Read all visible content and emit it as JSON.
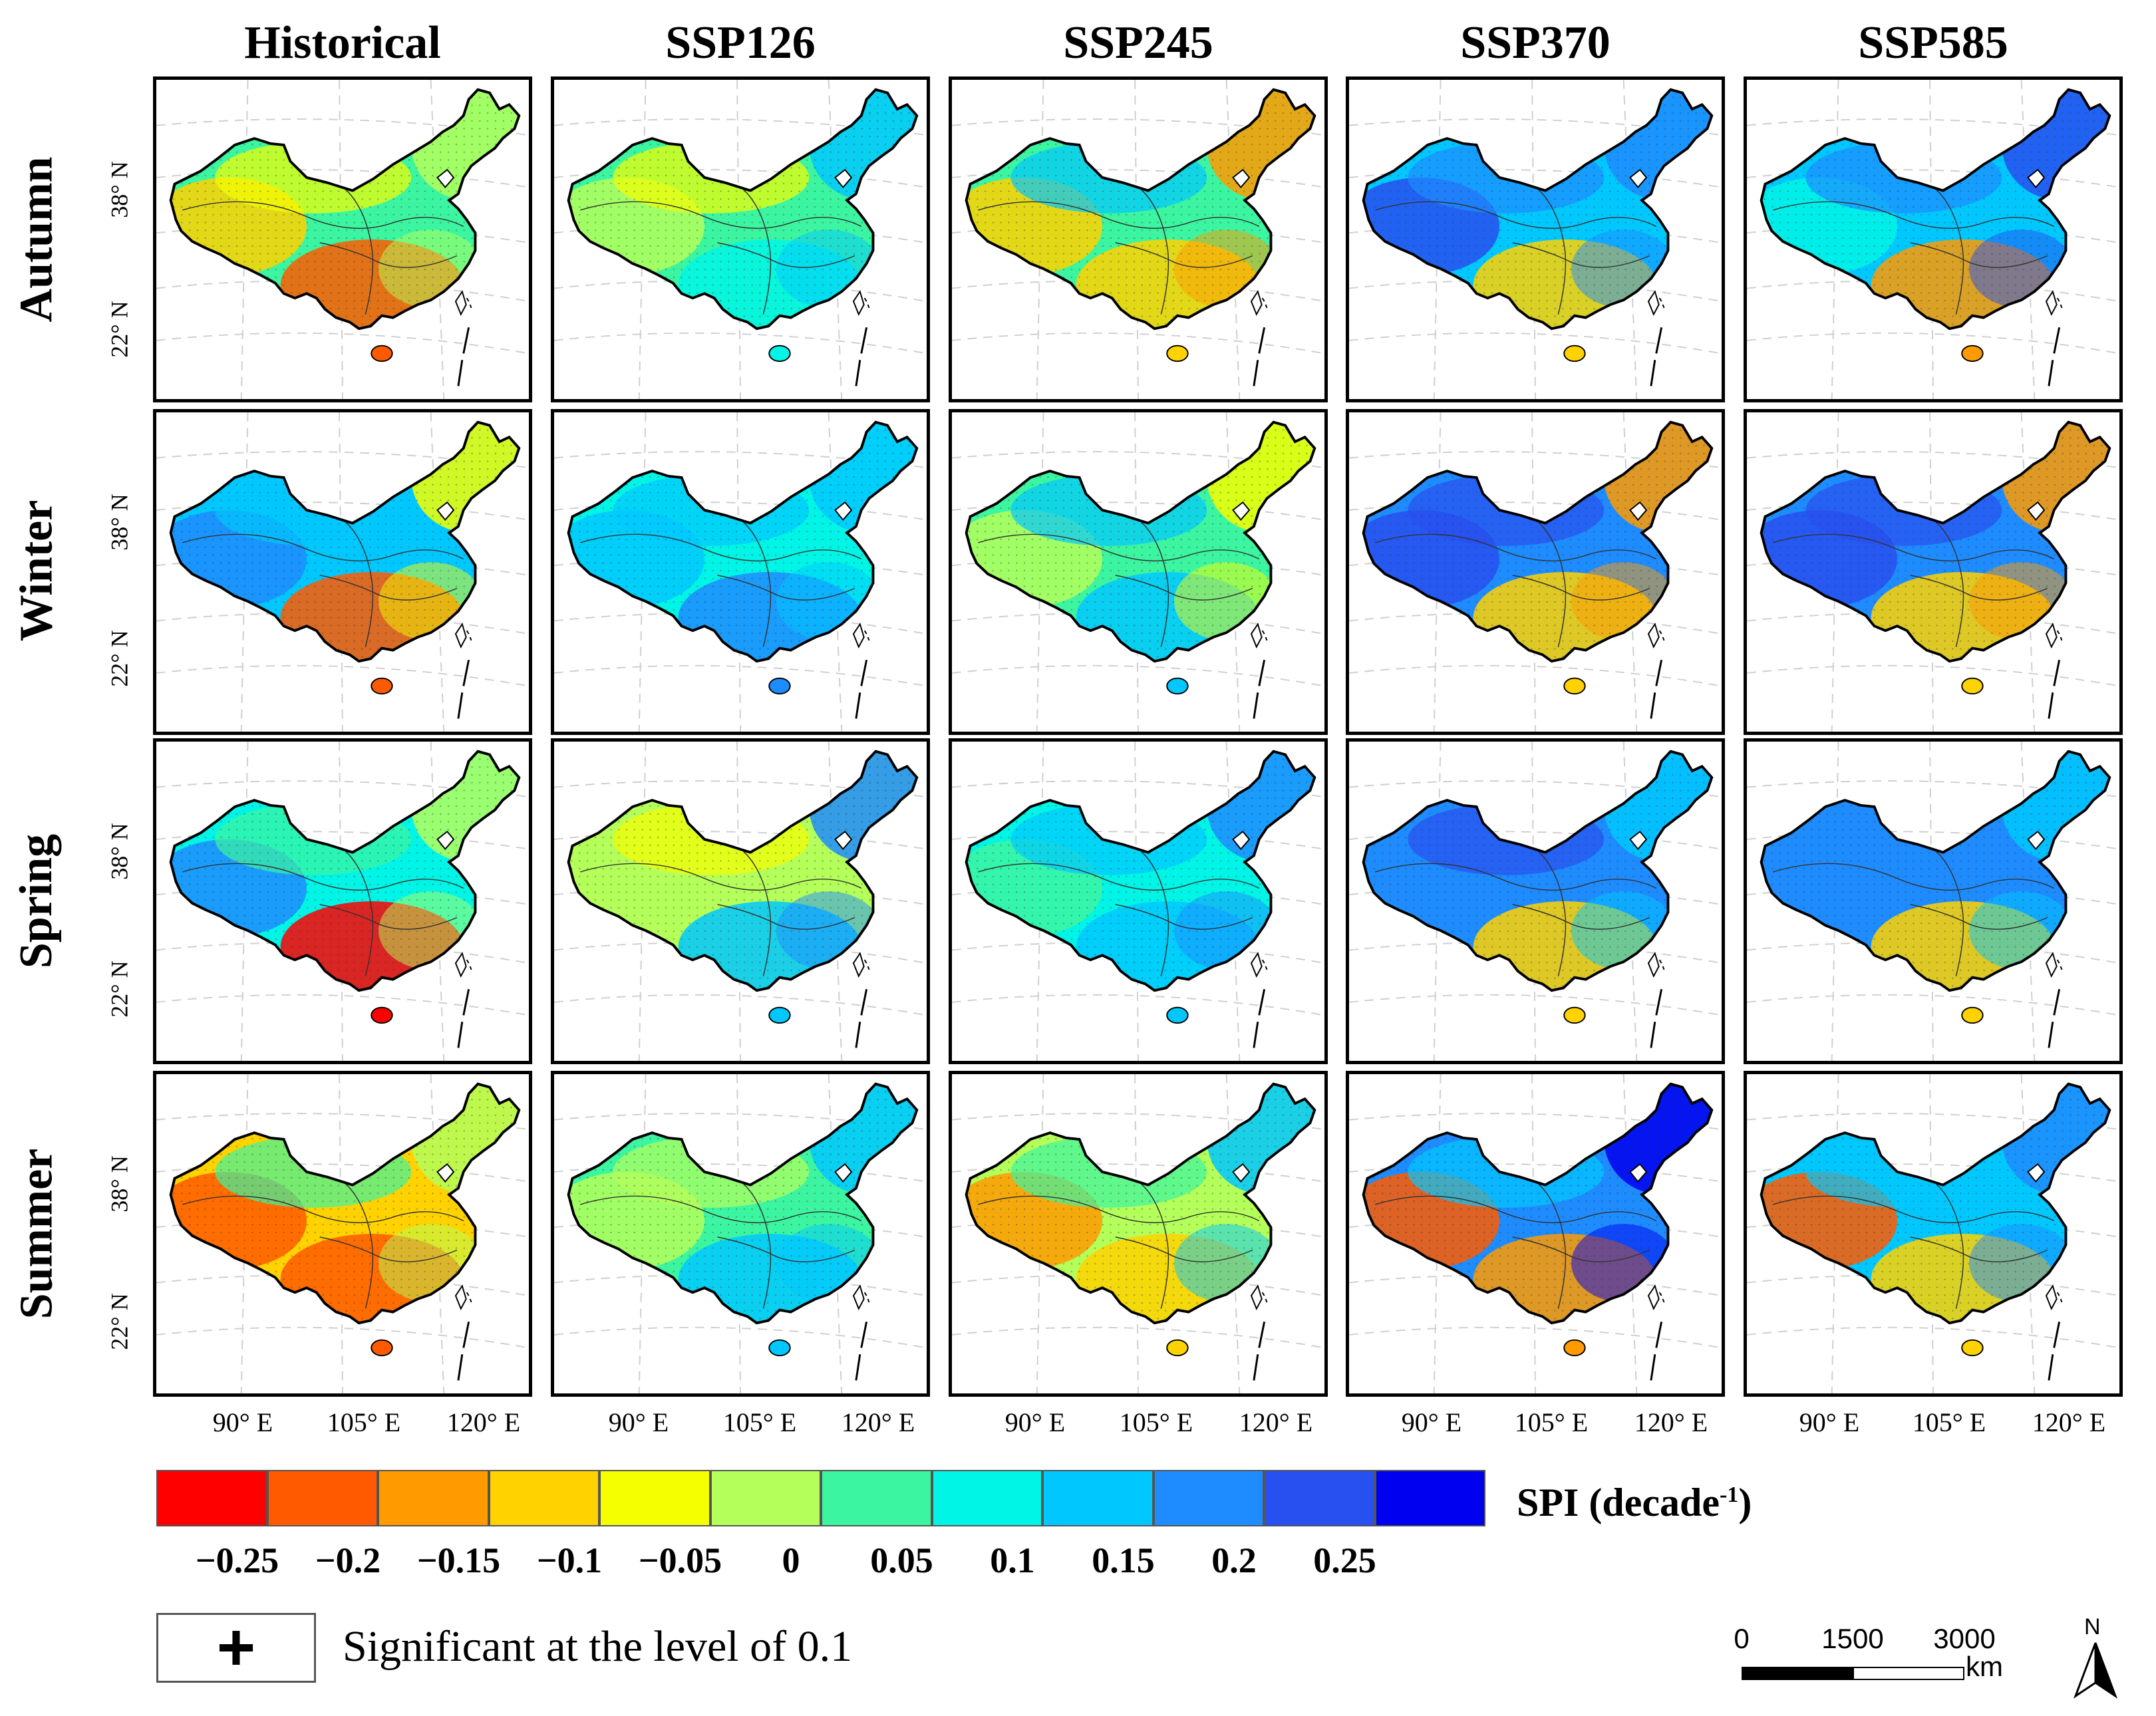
{
  "columns": [
    "Historical",
    "SSP126",
    "SSP245",
    "SSP370",
    "SSP585"
  ],
  "rows": [
    "Autumn",
    "Winter",
    "Spring",
    "Summer"
  ],
  "lat_labels": [
    "38° N",
    "22° N"
  ],
  "lon_labels": [
    "90° E",
    "105° E",
    "120° E"
  ],
  "colorbar": {
    "title": "SPI  (decade",
    "title_sup": "-1",
    "title_end": ")",
    "colors": [
      "#ff0000",
      "#ff5a00",
      "#ff9a00",
      "#ffd200",
      "#f5ff00",
      "#b4ff5a",
      "#3cf5a0",
      "#00f5e6",
      "#00c8ff",
      "#1e8cff",
      "#2850f0",
      "#0000f0"
    ],
    "ticks": [
      "−0.25",
      "−0.2",
      "−0.15",
      "−0.1",
      "−0.05",
      "0",
      "0.05",
      "0.1",
      "0.15",
      "0.2",
      "0.25"
    ]
  },
  "legend": {
    "symbol": "+",
    "text": "Significant at the level of 0.1"
  },
  "scalebar": {
    "labels": [
      "0",
      "1500",
      "3000"
    ],
    "unit": "km"
  },
  "north_arrow": "N",
  "map_data": {
    "Historical": {
      "Autumn": {
        "base": "#3cf5a0",
        "east": "#b4ff5a",
        "south": "#ff5a00",
        "north": "#f5ff00",
        "west": "#ffd200"
      },
      "Winter": {
        "base": "#00c8ff",
        "east": "#f5ff00",
        "south": "#ff5a00",
        "north": "#00c8ff",
        "west": "#1e8cff"
      },
      "Spring": {
        "base": "#00f5e6",
        "east": "#b4ff5a",
        "south": "#ff0000",
        "north": "#3cf5a0",
        "west": "#1e8cff"
      },
      "Summer": {
        "base": "#ffd200",
        "east": "#b4ff5a",
        "south": "#ff5a00",
        "north": "#3cf5a0",
        "west": "#ff5a00"
      }
    },
    "SSP126": {
      "Autumn": {
        "base": "#3cf5a0",
        "east": "#00c8ff",
        "south": "#00f5e6",
        "north": "#f5ff00",
        "west": "#b4ff5a"
      },
      "Winter": {
        "base": "#00f5e6",
        "east": "#00c8ff",
        "south": "#1e8cff",
        "north": "#00c8ff",
        "west": "#00c8ff"
      },
      "Spring": {
        "base": "#b4ff5a",
        "east": "#1e8cff",
        "south": "#00c8ff",
        "north": "#f5ff00",
        "west": "#b4ff5a"
      },
      "Summer": {
        "base": "#3cf5a0",
        "east": "#00c8ff",
        "south": "#00c8ff",
        "north": "#b4ff5a",
        "west": "#b4ff5a"
      }
    },
    "SSP245": {
      "Autumn": {
        "base": "#3cf5a0",
        "east": "#ff9a00",
        "south": "#ffd200",
        "north": "#00c8ff",
        "west": "#ffd200"
      },
      "Winter": {
        "base": "#3cf5a0",
        "east": "#f5ff00",
        "south": "#00c8ff",
        "north": "#00c8ff",
        "west": "#b4ff5a"
      },
      "Spring": {
        "base": "#00f5e6",
        "east": "#1e8cff",
        "south": "#00c8ff",
        "north": "#00c8ff",
        "west": "#3cf5a0"
      },
      "Summer": {
        "base": "#b4ff5a",
        "east": "#00c8ff",
        "south": "#ffd200",
        "north": "#3cf5a0",
        "west": "#ff9a00"
      }
    },
    "SSP370": {
      "Autumn": {
        "base": "#00c8ff",
        "east": "#1e8cff",
        "south": "#ffd200",
        "north": "#1e8cff",
        "west": "#2850f0"
      },
      "Winter": {
        "base": "#1e8cff",
        "east": "#ff9a00",
        "south": "#ffd200",
        "north": "#2850f0",
        "west": "#2850f0"
      },
      "Spring": {
        "base": "#1e8cff",
        "east": "#00c8ff",
        "south": "#ffd200",
        "north": "#2850f0",
        "west": "#1e8cff"
      },
      "Summer": {
        "base": "#1e8cff",
        "east": "#0000f0",
        "south": "#ff9a00",
        "north": "#00c8ff",
        "west": "#ff5a00"
      }
    },
    "SSP585": {
      "Autumn": {
        "base": "#00c8ff",
        "east": "#2850f0",
        "south": "#ff9a00",
        "north": "#1e8cff",
        "west": "#00f5e6"
      },
      "Winter": {
        "base": "#1e8cff",
        "east": "#ff9a00",
        "south": "#ffd200",
        "north": "#2850f0",
        "west": "#2850f0"
      },
      "Spring": {
        "base": "#1e8cff",
        "east": "#00c8ff",
        "south": "#ffd200",
        "north": "#1e8cff",
        "west": "#1e8cff"
      },
      "Summer": {
        "base": "#00c8ff",
        "east": "#1e8cff",
        "south": "#ffd200",
        "north": "#00c8ff",
        "west": "#ff5a00"
      }
    }
  }
}
